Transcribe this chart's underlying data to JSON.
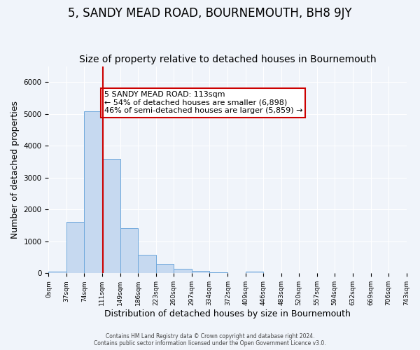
{
  "title": "5, SANDY MEAD ROAD, BOURNEMOUTH, BH8 9JY",
  "subtitle": "Size of property relative to detached houses in Bournemouth",
  "xlabel": "Distribution of detached houses by size in Bournemouth",
  "ylabel": "Number of detached properties",
  "bin_edges": [
    0,
    37,
    74,
    111,
    149,
    186,
    223,
    260,
    297,
    334,
    372,
    409,
    446,
    483,
    520,
    557,
    594,
    632,
    669,
    706,
    743
  ],
  "bin_counts": [
    60,
    1620,
    5080,
    3600,
    1420,
    580,
    300,
    150,
    80,
    30,
    10,
    60,
    0,
    0,
    0,
    0,
    0,
    0,
    0,
    0
  ],
  "bar_facecolor": "#c6d9f0",
  "bar_edgecolor": "#6fa8dc",
  "property_line_x": 113,
  "property_line_color": "#cc0000",
  "annotation_text": "5 SANDY MEAD ROAD: 113sqm\n← 54% of detached houses are smaller (6,898)\n46% of semi-detached houses are larger (5,859) →",
  "annotation_box_color": "#cc0000",
  "ylim": [
    0,
    6500
  ],
  "background_color": "#f0f4fa",
  "grid_color": "#ffffff",
  "footer_line1": "Contains HM Land Registry data © Crown copyright and database right 2024.",
  "footer_line2": "Contains public sector information licensed under the Open Government Licence v3.0.",
  "title_fontsize": 12,
  "subtitle_fontsize": 10,
  "xlabel_fontsize": 9,
  "ylabel_fontsize": 9,
  "tick_labels": [
    "0sqm",
    "37sqm",
    "74sqm",
    "111sqm",
    "149sqm",
    "186sqm",
    "223sqm",
    "260sqm",
    "297sqm",
    "334sqm",
    "372sqm",
    "409sqm",
    "446sqm",
    "483sqm",
    "520sqm",
    "557sqm",
    "594sqm",
    "632sqm",
    "669sqm",
    "706sqm",
    "743sqm"
  ]
}
